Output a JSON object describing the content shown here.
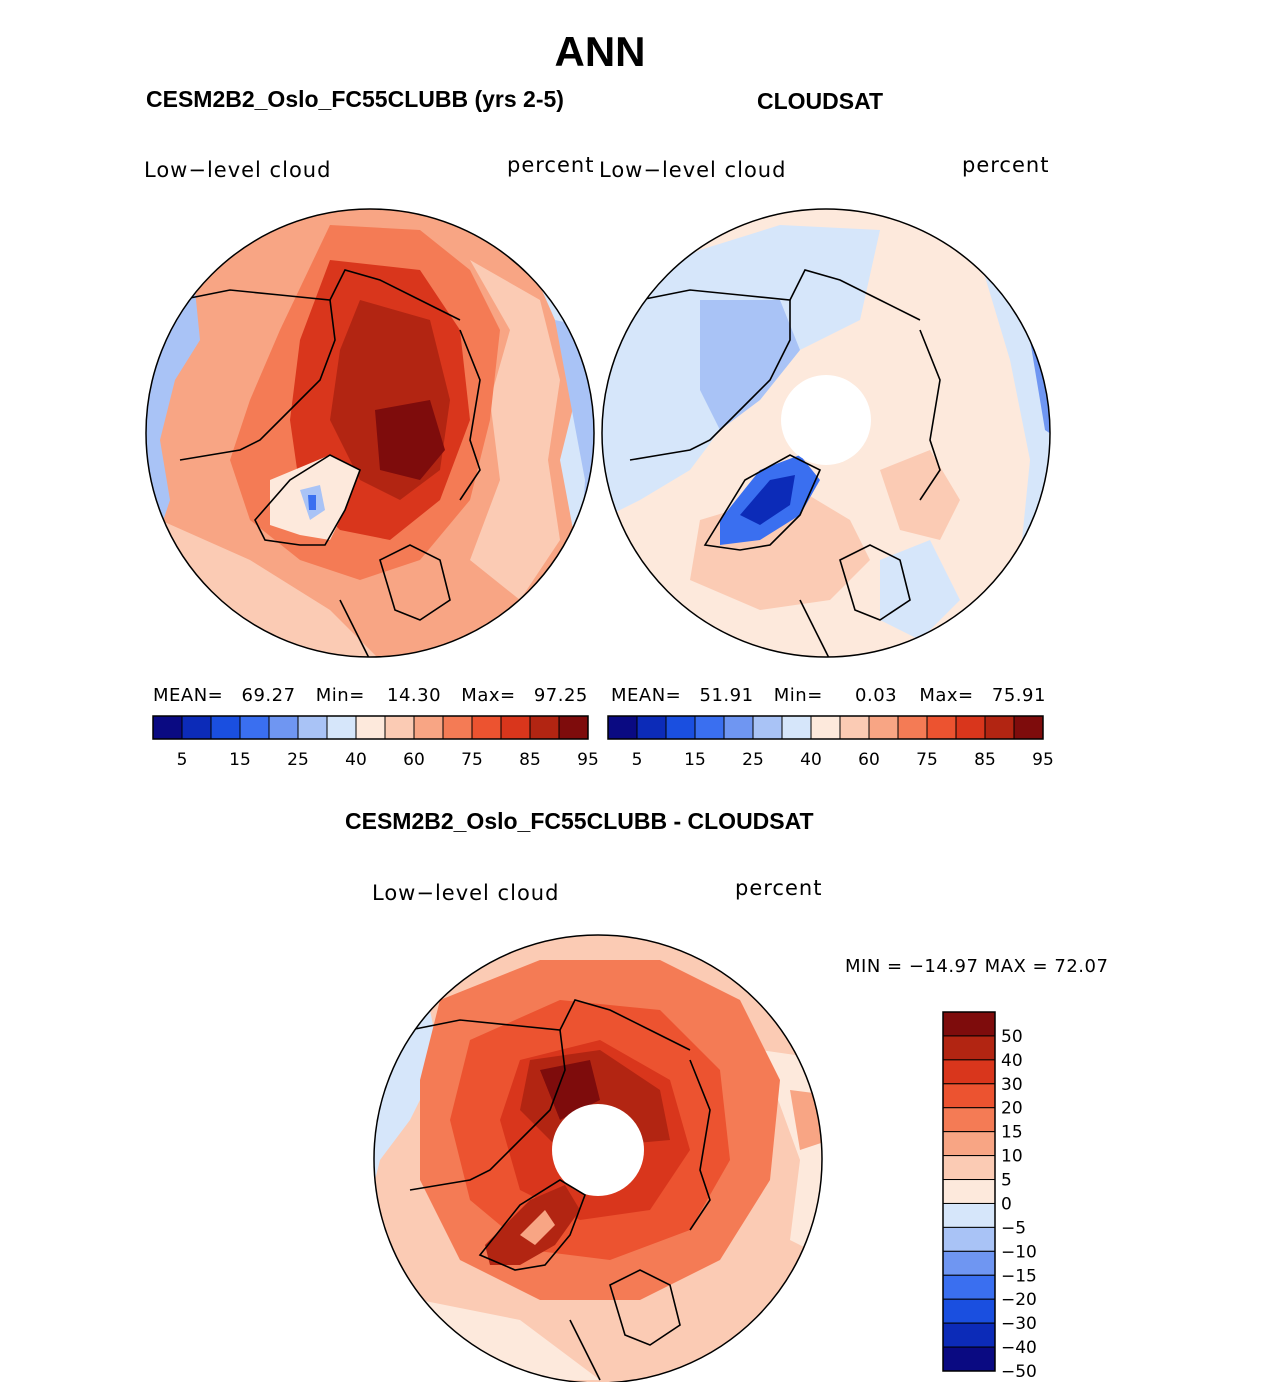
{
  "title": "ANN",
  "panels": [
    {
      "title": "CESM2B2_Oslo_FC55CLUBB (yrs 2-5)",
      "variable": "Low−level cloud",
      "units": "percent",
      "stats": {
        "mean_label": "MEAN=",
        "mean": "69.27",
        "min_label": "Min=",
        "min": "14.30",
        "max_label": "Max=",
        "max": "97.25"
      },
      "colorbar_ticks": [
        "5",
        "15",
        "25",
        "40",
        "60",
        "75",
        "85",
        "95"
      ]
    },
    {
      "title": "CLOUDSAT",
      "variable": "Low−level cloud",
      "units": "percent",
      "stats": {
        "mean_label": "MEAN=",
        "mean": "51.91",
        "min_label": "Min=",
        "min": "0.03",
        "max_label": "Max=",
        "max": "75.91"
      },
      "colorbar_ticks": [
        "5",
        "15",
        "25",
        "40",
        "60",
        "75",
        "85",
        "95"
      ]
    }
  ],
  "difference": {
    "title": "CESM2B2_Oslo_FC55CLUBB - CLOUDSAT",
    "variable": "Low−level cloud",
    "units": "percent",
    "minmax": "MIN = −14.97  MAX =   72.07",
    "colorbar_ticks": [
      "50",
      "40",
      "30",
      "20",
      "15",
      "10",
      "5",
      "0",
      "−5",
      "−10",
      "−15",
      "−20",
      "−30",
      "−40",
      "−50"
    ]
  },
  "palette": [
    "#0a0a82",
    "#0c2bb8",
    "#1a4fe0",
    "#3a6ff0",
    "#6f96f2",
    "#a9c3f6",
    "#d6e6fa",
    "#fde9dc",
    "#fbcbb4",
    "#f8a584",
    "#f47b55",
    "#ec5330",
    "#d9361c",
    "#b22512",
    "#7e0c0c"
  ],
  "chart_data": [
    {
      "type": "heatmap",
      "projection": "north-polar-stereographic",
      "title": "CESM2B2_Oslo_FC55CLUBB (yrs 2-5)",
      "variable": "Low-level cloud",
      "units": "percent",
      "levels": [
        5,
        10,
        15,
        20,
        25,
        30,
        40,
        50,
        60,
        65,
        75,
        80,
        85,
        90,
        95
      ],
      "mean": 69.27,
      "min": 14.3,
      "max": 97.25
    },
    {
      "type": "heatmap",
      "projection": "north-polar-stereographic",
      "title": "CLOUDSAT",
      "variable": "Low-level cloud",
      "units": "percent",
      "levels": [
        5,
        10,
        15,
        20,
        25,
        30,
        40,
        50,
        60,
        65,
        75,
        80,
        85,
        90,
        95
      ],
      "mean": 51.91,
      "min": 0.03,
      "max": 75.91
    },
    {
      "type": "heatmap",
      "projection": "north-polar-stereographic",
      "title": "CESM2B2_Oslo_FC55CLUBB - CLOUDSAT",
      "variable": "Low-level cloud",
      "units": "percent",
      "levels": [
        -50,
        -40,
        -30,
        -20,
        -15,
        -10,
        -5,
        0,
        5,
        10,
        15,
        20,
        30,
        40,
        50
      ],
      "min": -14.97,
      "max": 72.07
    }
  ]
}
